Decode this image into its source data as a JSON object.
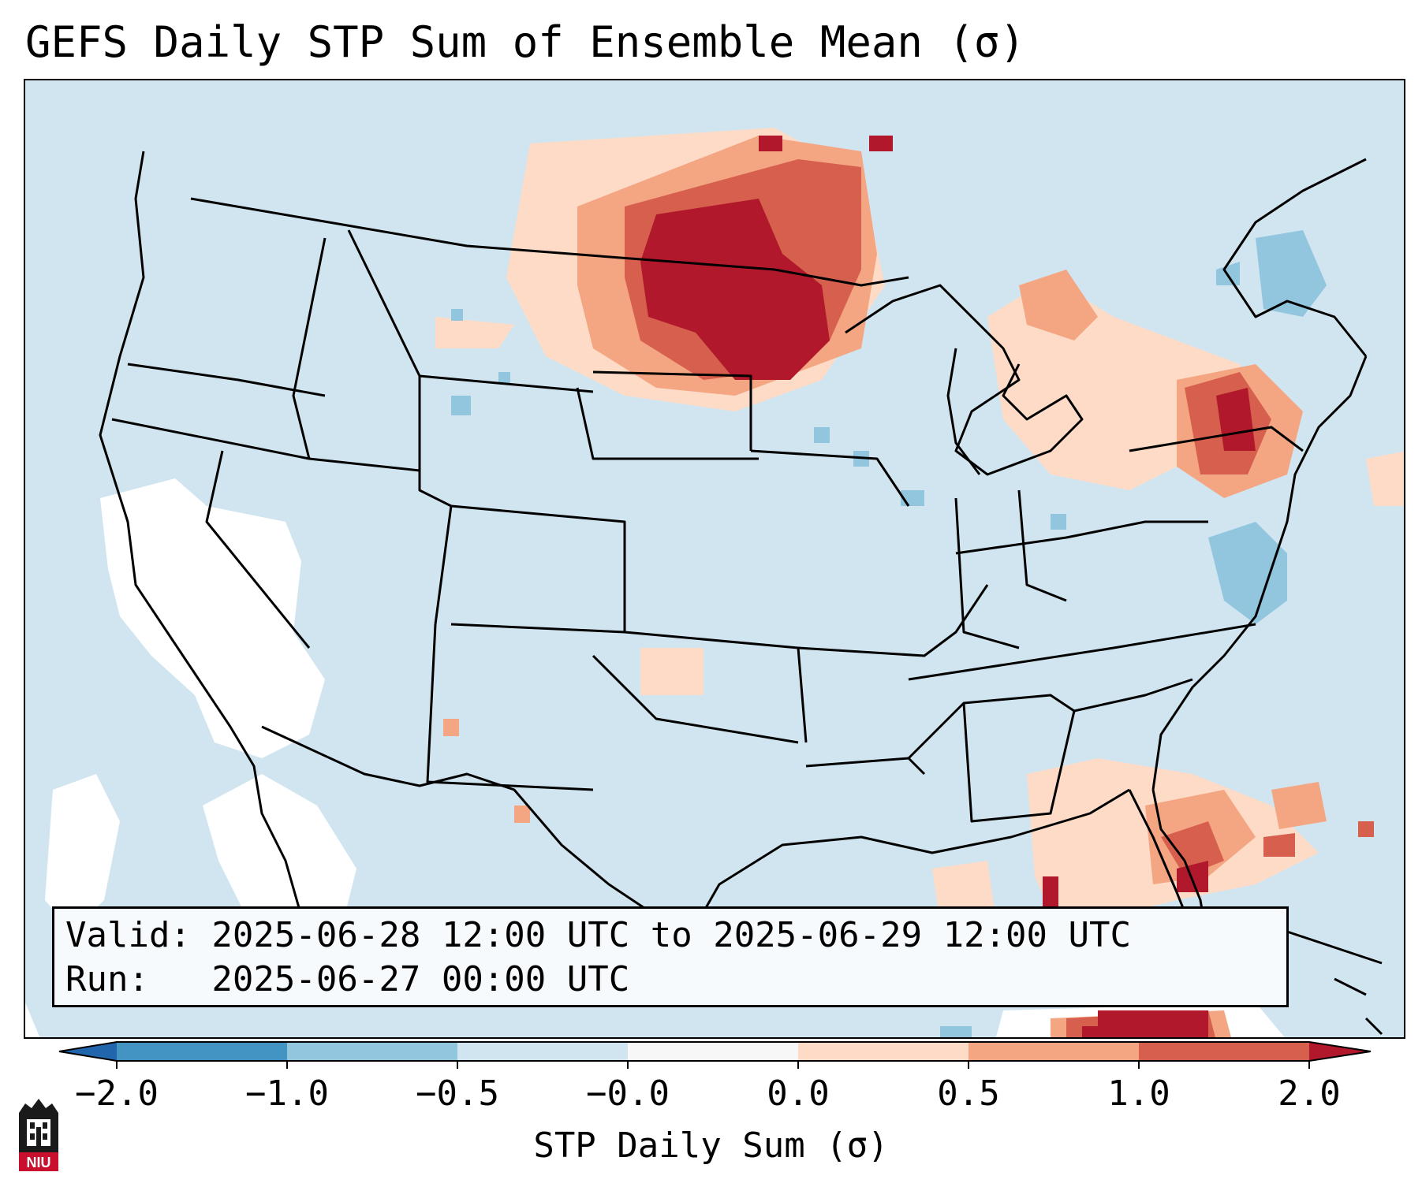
{
  "title": "GEFS Daily STP Sum of Ensemble Mean (σ)",
  "info": {
    "valid_line": "Valid: 2025-06-28 12:00 UTC to 2025-06-29 12:00 UTC",
    "run_line": "Run:   2025-06-27 00:00 UTC"
  },
  "colorbar": {
    "label": "STP Daily Sum (σ)",
    "ticks": [
      "−2.0",
      "−1.0",
      "−0.5",
      "−0.0",
      "0.0",
      "0.5",
      "1.0",
      "2.0"
    ],
    "bins": [
      {
        "from": "-2.0",
        "to": "-1.0",
        "color": "#4393c3"
      },
      {
        "from": "-1.0",
        "to": "-0.5",
        "color": "#92c5de"
      },
      {
        "from": "-0.5",
        "to": "-0.0",
        "color": "#d1e5f0"
      },
      {
        "from": "-0.0",
        "to": "0.0",
        "color": "#f7f7f7"
      },
      {
        "from": "0.0",
        "to": "0.5",
        "color": "#fddbc7"
      },
      {
        "from": "0.5",
        "to": "1.0",
        "color": "#f4a582"
      },
      {
        "from": "1.0",
        "to": "2.0",
        "color": "#d6604d"
      }
    ],
    "under_color": "#2166ac",
    "over_color": "#b2182b"
  },
  "logo": {
    "text": "NIU",
    "icon": "niu-university-logo"
  },
  "colors": {
    "background_field": "#d1e5f0",
    "neutral": "#ffffff",
    "light_red": "#fddbc7",
    "mid_red": "#f4a582",
    "red": "#d6604d",
    "dark_red": "#b2182b",
    "light_blue": "#92c5de"
  }
}
